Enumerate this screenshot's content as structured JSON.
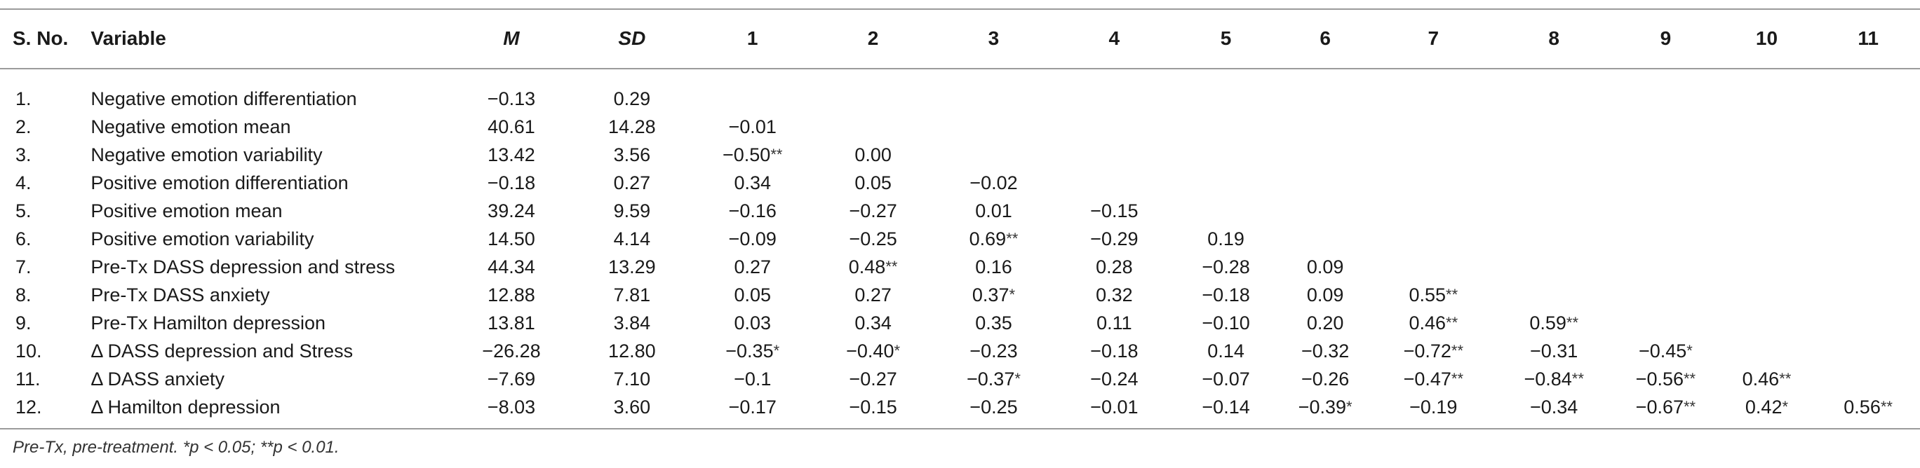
{
  "header": [
    "S. No.",
    "Variable",
    "M",
    "SD",
    "1",
    "2",
    "3",
    "4",
    "5",
    "6",
    "7",
    "8",
    "9",
    "10",
    "11"
  ],
  "rows": [
    {
      "no": "1.",
      "variable": "Negative emotion differentiation",
      "m": "−0.13",
      "sd": "0.29",
      "c": []
    },
    {
      "no": "2.",
      "variable": "Negative emotion mean",
      "m": "40.61",
      "sd": "14.28",
      "c": [
        "−0.01"
      ]
    },
    {
      "no": "3.",
      "variable": "Negative emotion variability",
      "m": "13.42",
      "sd": "3.56",
      "c": [
        "−0.50**",
        "0.00"
      ]
    },
    {
      "no": "4.",
      "variable": "Positive emotion differentiation",
      "m": "−0.18",
      "sd": "0.27",
      "c": [
        "0.34",
        "0.05",
        "−0.02"
      ]
    },
    {
      "no": "5.",
      "variable": "Positive emotion mean",
      "m": "39.24",
      "sd": "9.59",
      "c": [
        "−0.16",
        "−0.27",
        "0.01",
        "−0.15"
      ]
    },
    {
      "no": "6.",
      "variable": "Positive emotion variability",
      "m": "14.50",
      "sd": "4.14",
      "c": [
        "−0.09",
        "−0.25",
        "0.69**",
        "−0.29",
        "0.19"
      ]
    },
    {
      "no": "7.",
      "variable": "Pre-Tx DASS depression and stress",
      "m": "44.34",
      "sd": "13.29",
      "c": [
        "0.27",
        "0.48**",
        "0.16",
        "0.28",
        "−0.28",
        "0.09"
      ]
    },
    {
      "no": "8.",
      "variable": "Pre-Tx DASS anxiety",
      "m": "12.88",
      "sd": "7.81",
      "c": [
        "0.05",
        "0.27",
        "0.37*",
        "0.32",
        "−0.18",
        "0.09",
        "0.55**"
      ]
    },
    {
      "no": "9.",
      "variable": "Pre-Tx Hamilton depression",
      "m": "13.81",
      "sd": "3.84",
      "c": [
        "0.03",
        "0.34",
        "0.35",
        "0.11",
        "−0.10",
        "0.20",
        "0.46**",
        "0.59**"
      ]
    },
    {
      "no": "10.",
      "variable": "Δ DASS depression and Stress",
      "m": "−26.28",
      "sd": "12.80",
      "c": [
        "−0.35*",
        "−0.40*",
        "−0.23",
        "−0.18",
        "0.14",
        "−0.32",
        "−0.72**",
        "−0.31",
        "−0.45*"
      ]
    },
    {
      "no": "11.",
      "variable": "Δ DASS anxiety",
      "m": "−7.69",
      "sd": "7.10",
      "c": [
        "−0.1",
        "−0.27",
        "−0.37*",
        "−0.24",
        "−0.07",
        "−0.26",
        "−0.47**",
        "−0.84**",
        "−0.56**",
        "0.46**"
      ]
    },
    {
      "no": "12.",
      "variable": "Δ Hamilton depression",
      "m": "−8.03",
      "sd": "3.60",
      "c": [
        "−0.17",
        "−0.15",
        "−0.25",
        "−0.01",
        "−0.14",
        "−0.39*",
        "−0.19",
        "−0.34",
        "−0.67**",
        "0.42*",
        "0.56**"
      ]
    }
  ],
  "footnote": "Pre-Tx, pre-treatment. *p < 0.05; **p < 0.01."
}
